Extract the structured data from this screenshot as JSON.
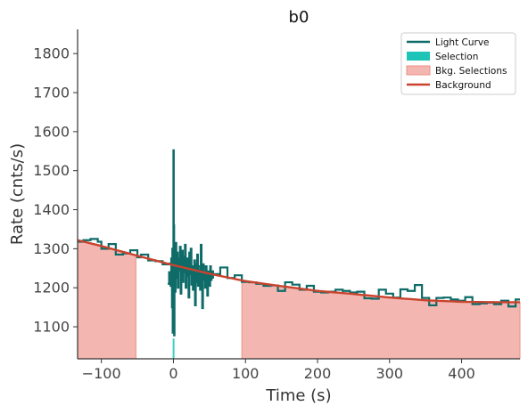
{
  "chart_data": {
    "type": "line",
    "title": "b0",
    "xlabel": "Time (s)",
    "ylabel": "Rate (cnts/s)",
    "xlim": [
      -133,
      481
    ],
    "ylim": [
      1018,
      1862
    ],
    "xticks": [
      -100,
      0,
      100,
      200,
      300,
      400
    ],
    "yticks": [
      1100,
      1200,
      1300,
      1400,
      1500,
      1600,
      1700,
      1800
    ],
    "xtick_labels": [
      "−100",
      "0",
      "100",
      "200",
      "300",
      "400"
    ],
    "ytick_labels": [
      "1100",
      "1200",
      "1300",
      "1400",
      "1500",
      "1600",
      "1700",
      "1800"
    ],
    "grid": false,
    "legend_position": "top-right",
    "legend": [
      {
        "label": "Light Curve",
        "kind": "line",
        "color": "#0e6b68"
      },
      {
        "label": "Selection",
        "kind": "patch",
        "color": "#1fc4b8"
      },
      {
        "label": "Bkg. Selections",
        "kind": "patch",
        "color": "#f4b6b0"
      },
      {
        "label": "Background",
        "kind": "line",
        "color": "#c9432e"
      }
    ],
    "colors": {
      "light_curve": "#0e6b68",
      "selection": "#1fc4b8",
      "bkg_fill": "#f4b6b0",
      "bkg_edge": "#ec9287",
      "background": "#c9432e",
      "axis": "#333333"
    },
    "bkg_selections": [
      [
        -133,
        -52
      ],
      [
        95,
        481
      ]
    ],
    "selection": [
      -1,
      1
    ],
    "background_model": {
      "x": [
        -133,
        -100,
        -50,
        0,
        50,
        100,
        150,
        200,
        250,
        300,
        350,
        400,
        450,
        481
      ],
      "y": [
        1322,
        1307,
        1282,
        1258,
        1236,
        1217,
        1204,
        1192,
        1184,
        1175,
        1168,
        1164,
        1163,
        1163
      ]
    },
    "light_curve_step": {
      "x": [
        -133,
        -125,
        -115,
        -105,
        -100,
        -90,
        -80,
        -70,
        -60,
        -50,
        -45,
        -35,
        -25,
        -15,
        -5,
        5,
        15,
        25,
        35,
        45,
        55,
        65,
        75,
        85,
        95,
        105,
        115,
        125,
        135,
        145,
        155,
        165,
        175,
        185,
        195,
        205,
        215,
        225,
        235,
        245,
        255,
        265,
        275,
        285,
        295,
        305,
        315,
        325,
        335,
        345,
        355,
        365,
        375,
        385,
        395,
        405,
        415,
        425,
        435,
        445,
        455,
        465,
        475,
        481
      ],
      "y": [
        1318,
        1322,
        1325,
        1318,
        1300,
        1312,
        1285,
        1288,
        1296,
        1278,
        1285,
        1270,
        1268,
        1260,
        1262,
        1258,
        1245,
        1248,
        1255,
        1242,
        1235,
        1252,
        1225,
        1232,
        1215,
        1214,
        1210,
        1205,
        1206,
        1192,
        1214,
        1208,
        1195,
        1205,
        1190,
        1188,
        1190,
        1195,
        1192,
        1188,
        1190,
        1173,
        1172,
        1195,
        1185,
        1175,
        1196,
        1192,
        1207,
        1174,
        1155,
        1174,
        1175,
        1170,
        1167,
        1176,
        1158,
        1160,
        1162,
        1158,
        1167,
        1152,
        1170,
        1170
      ]
    },
    "light_curve_fine": {
      "x": [
        -8,
        -6,
        -4,
        -3,
        -2,
        -1.5,
        -1,
        -0.5,
        0,
        0.5,
        1,
        1.5,
        2,
        3,
        4,
        5,
        6,
        7,
        8,
        9,
        10,
        11,
        12,
        13,
        14,
        15,
        16,
        17,
        18,
        19,
        20,
        21,
        22,
        23,
        24,
        25,
        26,
        27,
        28,
        29,
        30,
        31,
        32,
        33,
        34,
        35,
        36,
        37,
        38,
        39,
        40,
        41,
        42,
        43,
        44,
        45,
        46,
        47,
        48,
        49,
        50,
        51,
        52,
        53,
        54,
        55
      ],
      "y": [
        1210,
        1240,
        1205,
        1275,
        1150,
        1300,
        1085,
        1260,
        1552,
        1360,
        1078,
        1285,
        1190,
        1315,
        1225,
        1290,
        1200,
        1275,
        1245,
        1305,
        1185,
        1260,
        1295,
        1215,
        1280,
        1240,
        1310,
        1200,
        1250,
        1275,
        1230,
        1175,
        1290,
        1235,
        1300,
        1208,
        1255,
        1195,
        1240,
        1270,
        1155,
        1260,
        1215,
        1285,
        1205,
        1245,
        1225,
        1195,
        1310,
        1240,
        1148,
        1260,
        1220,
        1235,
        1200,
        1255,
        1215,
        1180,
        1240,
        1230,
        1205,
        1255,
        1220,
        1240,
        1226,
        1244
      ]
    }
  }
}
